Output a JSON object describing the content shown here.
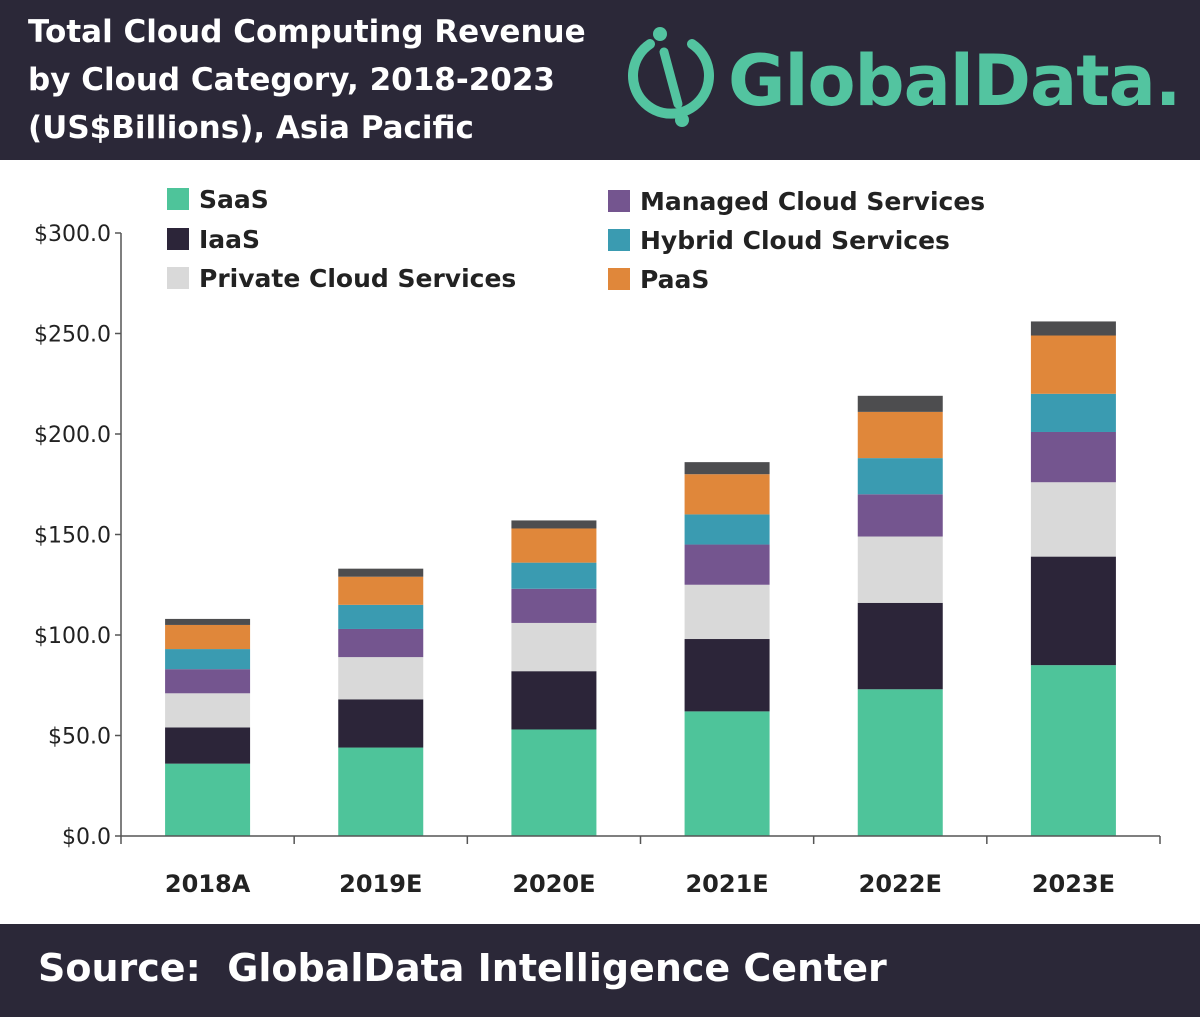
{
  "header": {
    "title_lines": [
      "Total Cloud Computing Revenue",
      "by Cloud Category, 2018-2023",
      "(US$Billions), Asia Pacific"
    ],
    "logo_text": "GlobalData."
  },
  "footer": {
    "source": "Source:  GlobalData Intelligence Center"
  },
  "colors": {
    "background_band": "#2b2838",
    "saas": "#4ec49a",
    "iaas": "#2c2539",
    "private": "#d9d9d9",
    "managed": "#74558f",
    "hybrid": "#3a9bb1",
    "paas": "#e0873a",
    "other": "#4d4d4f",
    "logo": "#53c4a0"
  },
  "chart_data": {
    "type": "bar",
    "stacked": true,
    "categories": [
      "2018A",
      "2019E",
      "2020E",
      "2021E",
      "2022E",
      "2023E"
    ],
    "ylim": [
      0,
      300
    ],
    "yticks": [
      "$0.0",
      "$50.0",
      "$100.0",
      "$150.0",
      "$200.0",
      "$250.0",
      "$300.0"
    ],
    "ytick_values": [
      0,
      50,
      100,
      150,
      200,
      250,
      300
    ],
    "legend": "top",
    "grid": false,
    "series": [
      {
        "name": "SaaS",
        "color_key": "saas",
        "values": [
          36,
          44,
          53,
          62,
          73,
          85
        ]
      },
      {
        "name": "IaaS",
        "color_key": "iaas",
        "values": [
          18,
          24,
          29,
          36,
          43,
          54
        ]
      },
      {
        "name": "Private Cloud Services",
        "color_key": "private",
        "values": [
          17,
          21,
          24,
          27,
          33,
          37
        ]
      },
      {
        "name": "Managed Cloud Services",
        "color_key": "managed",
        "values": [
          12,
          14,
          17,
          20,
          21,
          25
        ]
      },
      {
        "name": "Hybrid Cloud Services",
        "color_key": "hybrid",
        "values": [
          10,
          12,
          13,
          15,
          18,
          19
        ]
      },
      {
        "name": "PaaS",
        "color_key": "paas",
        "values": [
          12,
          14,
          17,
          20,
          23,
          29
        ]
      },
      {
        "color_key": "other",
        "values": [
          3,
          4,
          4,
          6,
          8,
          7
        ]
      }
    ],
    "legend_entries": [
      {
        "name": "SaaS",
        "color_key": "saas"
      },
      {
        "name": "IaaS",
        "color_key": "iaas"
      },
      {
        "name": "Private Cloud Services",
        "color_key": "private"
      },
      {
        "name": "Managed Cloud Services",
        "color_key": "managed"
      },
      {
        "name": "Hybrid Cloud Services",
        "color_key": "hybrid"
      },
      {
        "name": "PaaS",
        "color_key": "paas"
      }
    ]
  }
}
